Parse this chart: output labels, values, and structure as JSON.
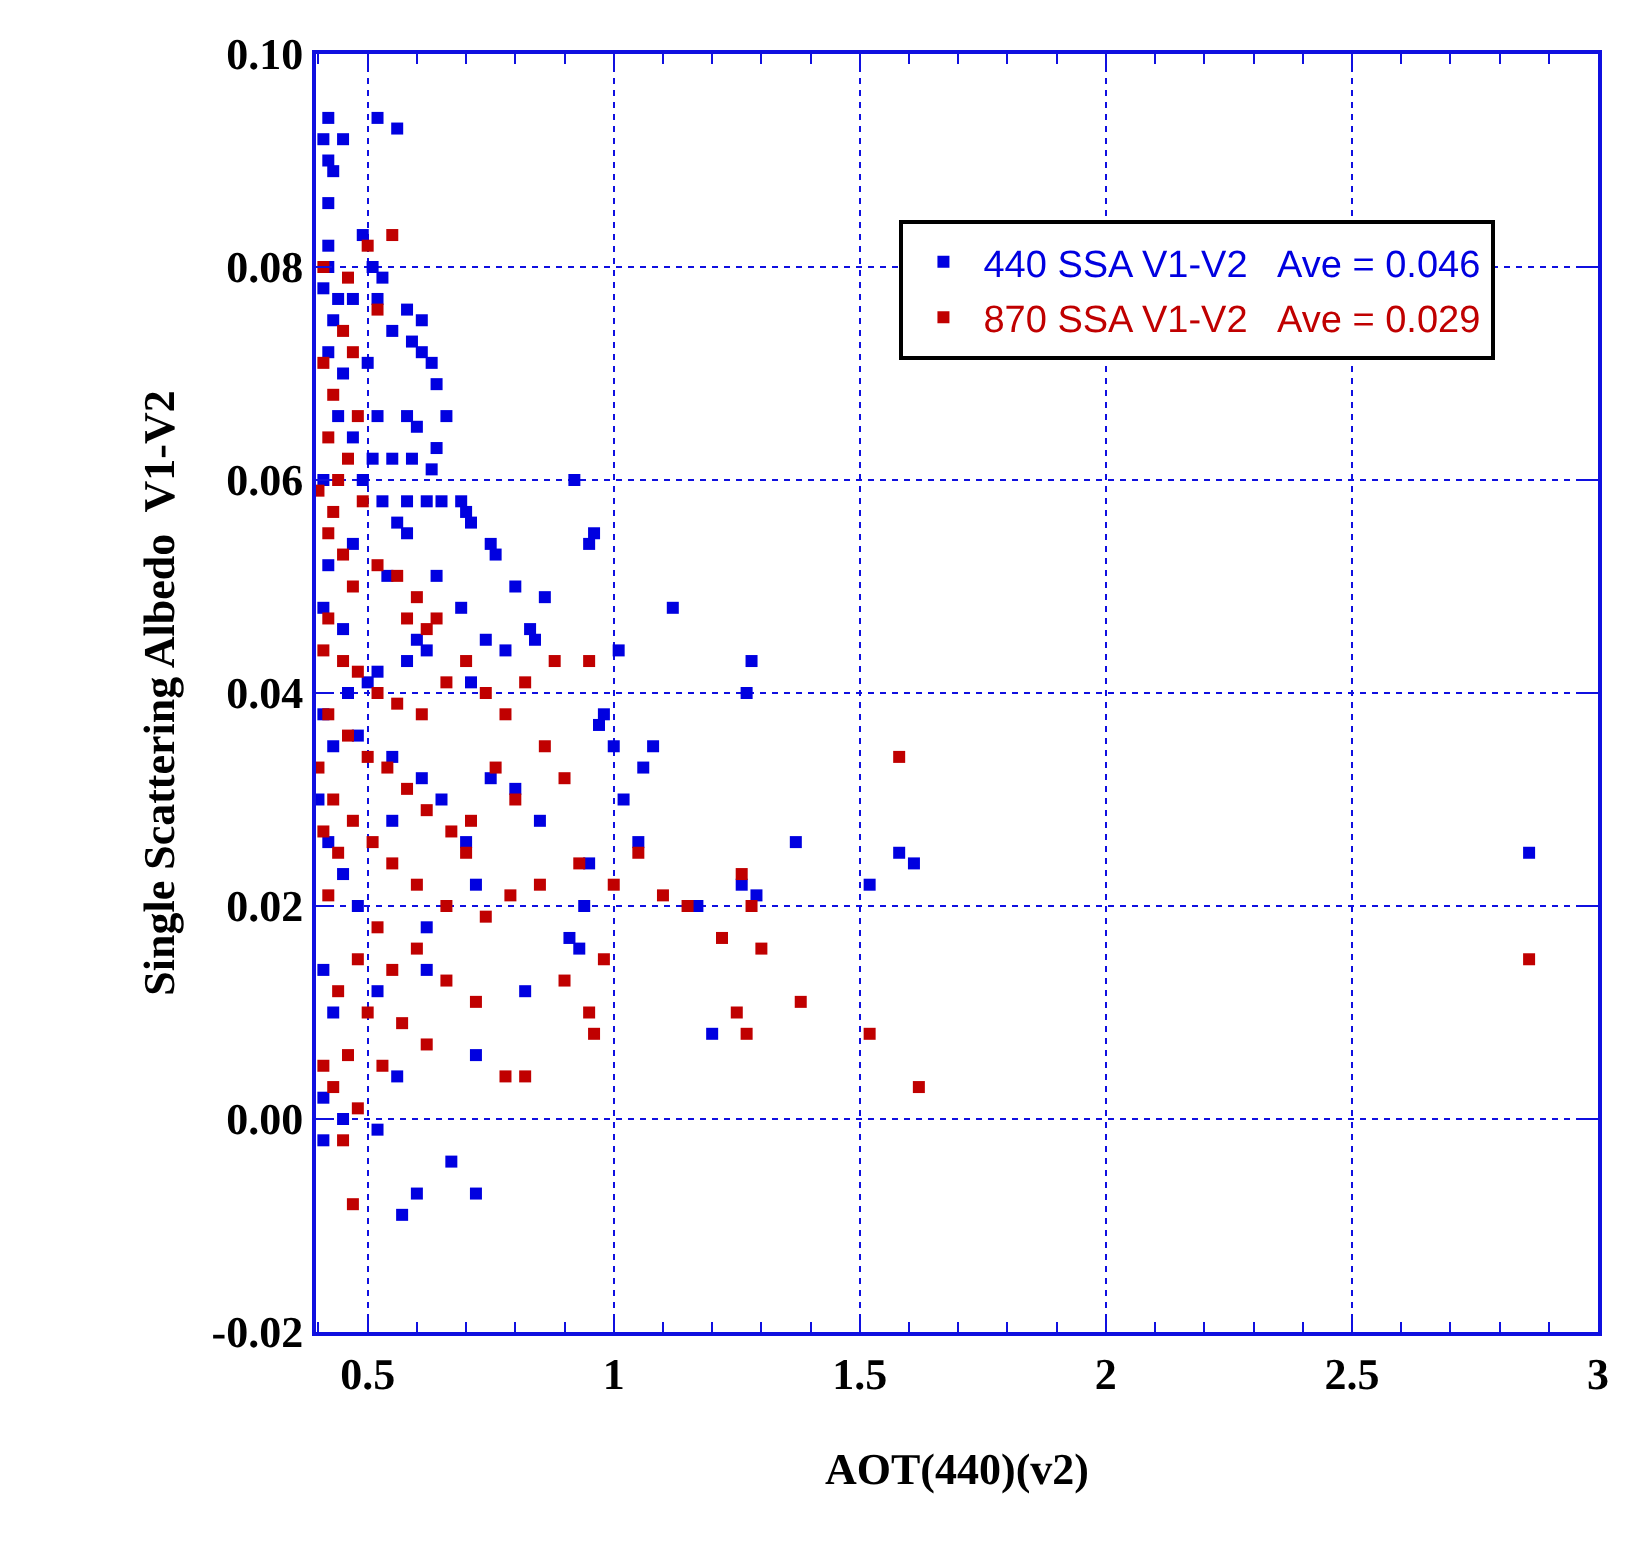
{
  "chart_data": {
    "type": "scatter",
    "xlabel": "AOT(440)(v2)",
    "ylabel": "Single Scattering Albedo  V1-V2",
    "xlim": [
      0.395,
      3
    ],
    "ylim": [
      -0.02,
      0.1
    ],
    "xticks": [
      0.5,
      1,
      1.5,
      2,
      2.5,
      3
    ],
    "yticks": [
      {
        "value": -0.02,
        "label": "-0.02"
      },
      {
        "value": 0,
        "label": "0.00"
      },
      {
        "value": 0.02,
        "label": "0.02"
      },
      {
        "value": 0.04,
        "label": "0.04"
      },
      {
        "value": 0.06,
        "label": "0.06"
      },
      {
        "value": 0.08,
        "label": "0.08"
      },
      {
        "value": 0.1,
        "label": "0.10"
      }
    ],
    "grid": true,
    "legend": "top right",
    "marker": "square",
    "series": [
      {
        "name": "440 SSA V1-V2   Ave = 0.046",
        "color": "#0000e0",
        "x": [
          0.42,
          0.52,
          0.56,
          0.41,
          0.45,
          0.42,
          0.43,
          0.42,
          0.49,
          0.42,
          0.42,
          0.51,
          0.53,
          0.41,
          0.44,
          0.47,
          0.52,
          0.43,
          0.58,
          0.55,
          0.61,
          0.59,
          0.61,
          0.63,
          0.42,
          0.45,
          0.5,
          0.64,
          0.52,
          0.58,
          0.6,
          0.66,
          0.44,
          0.47,
          0.59,
          0.63,
          0.64,
          0.55,
          0.51,
          0.41,
          0.49,
          0.53,
          0.58,
          0.62,
          0.65,
          0.69,
          0.7,
          0.71,
          0.92,
          0.56,
          0.58,
          0.75,
          0.76,
          0.95,
          0.96,
          0.47,
          0.42,
          0.54,
          0.64,
          0.69,
          0.8,
          0.86,
          0.41,
          0.45,
          0.6,
          0.62,
          0.74,
          0.78,
          0.83,
          0.84,
          0.71,
          1.01,
          1.12,
          1.28,
          1.27,
          1.08,
          1.06,
          1.02,
          0.98,
          0.97,
          1.0,
          1.37,
          1.52,
          1.58,
          1.61,
          1.29,
          1.26,
          1.17,
          1.05,
          0.95,
          0.94,
          0.93,
          0.91,
          1.2,
          0.85,
          0.8,
          0.75,
          0.72,
          0.7,
          0.62,
          0.61,
          0.55,
          0.48,
          0.43,
          0.41,
          0.46,
          0.5,
          0.52,
          0.58,
          0.4,
          0.42,
          0.45,
          0.48,
          0.55,
          0.65,
          0.41,
          0.43,
          0.52,
          0.62,
          0.72,
          0.82,
          0.41,
          0.45,
          0.56,
          0.52,
          0.41,
          0.6,
          0.72,
          0.57,
          0.67,
          2.86
        ],
        "values": [
          0.094,
          0.094,
          0.093,
          0.092,
          0.092,
          0.09,
          0.089,
          0.086,
          0.083,
          0.082,
          0.08,
          0.08,
          0.079,
          0.078,
          0.077,
          0.077,
          0.077,
          0.075,
          0.076,
          0.074,
          0.075,
          0.073,
          0.072,
          0.071,
          0.072,
          0.07,
          0.071,
          0.069,
          0.066,
          0.066,
          0.065,
          0.066,
          0.066,
          0.064,
          0.062,
          0.061,
          0.063,
          0.062,
          0.062,
          0.06,
          0.06,
          0.058,
          0.058,
          0.058,
          0.058,
          0.058,
          0.057,
          0.056,
          0.06,
          0.056,
          0.055,
          0.054,
          0.053,
          0.054,
          0.055,
          0.054,
          0.052,
          0.051,
          0.051,
          0.048,
          0.05,
          0.049,
          0.048,
          0.046,
          0.045,
          0.044,
          0.045,
          0.044,
          0.046,
          0.045,
          0.041,
          0.044,
          0.048,
          0.043,
          0.04,
          0.035,
          0.033,
          0.03,
          0.038,
          0.037,
          0.035,
          0.026,
          0.022,
          0.025,
          0.024,
          0.021,
          0.022,
          0.02,
          0.026,
          0.024,
          0.02,
          0.016,
          0.017,
          0.008,
          0.028,
          0.031,
          0.032,
          0.022,
          0.026,
          0.018,
          0.032,
          0.034,
          0.036,
          0.035,
          0.038,
          0.04,
          0.041,
          0.042,
          0.043,
          0.03,
          0.026,
          0.023,
          0.02,
          0.028,
          0.03,
          0.014,
          0.01,
          0.012,
          0.014,
          0.006,
          0.012,
          0.002,
          0.0,
          0.004,
          -0.001,
          -0.002,
          -0.007,
          -0.007,
          -0.009,
          -0.004,
          0.025
        ]
      },
      {
        "name": "870 SSA V1-V2   Ave = 0.029",
        "color": "#c00000",
        "x": [
          0.55,
          0.41,
          0.5,
          0.46,
          0.52,
          0.45,
          0.47,
          0.41,
          0.43,
          0.48,
          0.42,
          0.46,
          0.44,
          0.4,
          0.43,
          0.49,
          0.42,
          0.45,
          0.52,
          0.47,
          0.56,
          0.6,
          0.64,
          0.58,
          0.62,
          0.42,
          0.41,
          0.45,
          0.48,
          0.52,
          0.56,
          0.61,
          0.66,
          0.7,
          0.74,
          0.78,
          0.82,
          0.88,
          0.95,
          0.42,
          0.46,
          0.5,
          0.54,
          0.58,
          0.62,
          0.67,
          0.71,
          0.76,
          0.8,
          0.86,
          0.9,
          0.4,
          0.43,
          0.47,
          0.51,
          0.55,
          0.6,
          0.66,
          0.7,
          0.74,
          0.79,
          0.85,
          0.93,
          1.0,
          1.05,
          1.1,
          1.15,
          1.22,
          1.26,
          1.28,
          1.3,
          1.38,
          1.58,
          1.52,
          1.62,
          1.25,
          1.27,
          0.98,
          0.95,
          0.96,
          0.9,
          0.82,
          0.78,
          0.72,
          0.66,
          0.6,
          0.55,
          0.5,
          0.46,
          0.43,
          0.41,
          0.44,
          0.48,
          0.52,
          0.57,
          0.62,
          0.53,
          0.48,
          0.45,
          0.47,
          0.42,
          0.44,
          0.41,
          2.86
        ],
        "values": [
          0.083,
          0.08,
          0.082,
          0.079,
          0.076,
          0.074,
          0.072,
          0.071,
          0.068,
          0.066,
          0.064,
          0.062,
          0.06,
          0.059,
          0.057,
          0.058,
          0.055,
          0.053,
          0.052,
          0.05,
          0.051,
          0.049,
          0.047,
          0.047,
          0.046,
          0.047,
          0.044,
          0.043,
          0.042,
          0.04,
          0.039,
          0.038,
          0.041,
          0.043,
          0.04,
          0.038,
          0.041,
          0.043,
          0.043,
          0.038,
          0.036,
          0.034,
          0.033,
          0.031,
          0.029,
          0.027,
          0.028,
          0.033,
          0.03,
          0.035,
          0.032,
          0.033,
          0.03,
          0.028,
          0.026,
          0.024,
          0.022,
          0.02,
          0.025,
          0.019,
          0.021,
          0.022,
          0.024,
          0.022,
          0.025,
          0.021,
          0.02,
          0.017,
          0.023,
          0.02,
          0.016,
          0.011,
          0.034,
          0.008,
          0.003,
          0.01,
          0.008,
          0.015,
          0.01,
          0.008,
          0.013,
          0.004,
          0.004,
          0.011,
          0.013,
          0.016,
          0.014,
          0.01,
          0.006,
          0.003,
          0.005,
          0.012,
          0.015,
          0.018,
          0.009,
          0.007,
          0.005,
          0.001,
          -0.002,
          -0.008,
          0.021,
          0.025,
          0.027,
          0.015
        ]
      }
    ]
  }
}
